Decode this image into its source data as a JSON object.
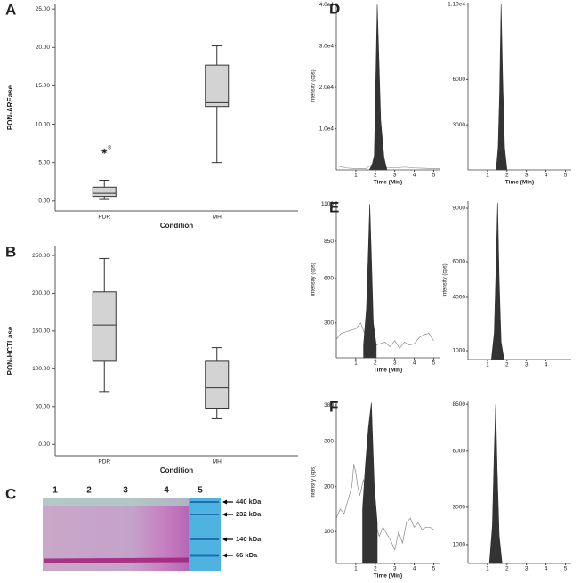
{
  "chart_data": [
    {
      "type": "box",
      "panel": "A",
      "ylabel": "PON-AREase",
      "xlabel": "Condition",
      "categories": [
        "PDR",
        "MH"
      ],
      "color": "#d3d3d3",
      "boxes": [
        {
          "min": 0.2,
          "q1": 0.6,
          "median": 1.0,
          "q3": 1.8,
          "max": 2.7
        },
        {
          "min": 5.0,
          "q1": 12.3,
          "median": 12.8,
          "q3": 17.7,
          "max": 20.2
        }
      ],
      "outliers": [
        {
          "category": "PDR",
          "value": 6.5,
          "label": "8"
        }
      ],
      "ylim": [
        -1.3,
        25.6
      ],
      "yticks": [
        {
          "value": 0,
          "label": "0.00"
        },
        {
          "value": 5,
          "label": "5.00"
        },
        {
          "value": 10,
          "label": "10.00"
        },
        {
          "value": 15,
          "label": "15.00"
        },
        {
          "value": 20,
          "label": "20.00"
        },
        {
          "value": 25,
          "label": "25.00"
        }
      ]
    },
    {
      "type": "box",
      "panel": "B",
      "ylabel": "PON-HCTLase",
      "xlabel": "Condition",
      "categories": [
        "PDR",
        "MH"
      ],
      "color": "#d3d3d3",
      "boxes": [
        {
          "min": 70,
          "q1": 110,
          "median": 158,
          "q3": 202,
          "max": 246
        },
        {
          "min": 34,
          "q1": 48,
          "median": 75,
          "q3": 110,
          "max": 128
        }
      ],
      "outliers": [],
      "ylim": [
        -15,
        263
      ],
      "yticks": [
        {
          "value": 0,
          "label": "0.00"
        },
        {
          "value": 50,
          "label": "50.00"
        },
        {
          "value": 100,
          "label": "100.00"
        },
        {
          "value": 150,
          "label": "150.00"
        },
        {
          "value": 200,
          "label": "200.00"
        },
        {
          "value": 250,
          "label": "250.00"
        }
      ]
    },
    {
      "type": "chromatogram",
      "panel": "D",
      "ylabel": "Intensity (cps)",
      "xlabel": "Time (Min)",
      "xlim": [
        0,
        5.3
      ],
      "xticks": [
        1,
        2,
        3,
        4,
        5
      ],
      "ylim": [
        0,
        40500
      ],
      "yticks": [
        {
          "value": 10000,
          "label": "1.0e4"
        },
        {
          "value": 20000,
          "label": "2.0e4"
        },
        {
          "value": 30000,
          "label": "3.0e4"
        },
        {
          "value": 40000,
          "label": "4.0e4"
        }
      ],
      "series": [
        {
          "color": "#999999",
          "x": [
            0.1,
            0.5,
            1,
            1.5,
            1.9,
            2.05,
            2.15,
            2.3,
            2.6,
            3,
            3.5,
            4,
            4.5,
            5,
            5.3
          ],
          "values": [
            900,
            500,
            300,
            300,
            1500,
            3000,
            2500,
            1200,
            600,
            500,
            700,
            500,
            400,
            300,
            300
          ]
        },
        {
          "color": "#333333",
          "fill": true,
          "x": [
            1.7,
            1.85,
            1.95,
            2.02,
            2.1,
            2.18,
            2.28,
            2.45,
            2.6
          ],
          "values": [
            0,
            1500,
            3500,
            20000,
            40000,
            28000,
            12000,
            3000,
            0
          ]
        }
      ]
    },
    {
      "type": "chromatogram",
      "xlabel": "Time (Min)",
      "xlim": [
        0,
        5.3
      ],
      "xticks": [
        1,
        2,
        3,
        4,
        5
      ],
      "ylim": [
        0,
        11100
      ],
      "yticks": [
        3000,
        6000,
        {
          "value": 11000,
          "label": "1.10e4"
        }
      ],
      "series": [
        {
          "color": "#333333",
          "fill": true,
          "x": [
            1.45,
            1.55,
            1.62,
            1.7,
            1.78,
            1.88,
            2.0
          ],
          "values": [
            0,
            1500,
            5000,
            11000,
            6000,
            1500,
            0
          ]
        }
      ]
    },
    {
      "type": "chromatogram",
      "panel": "E",
      "ylabel": "Intensity (cps)",
      "xlabel": "Time (Min)",
      "xlim": [
        0,
        5.3
      ],
      "xticks": [
        1,
        2,
        3,
        4,
        5
      ],
      "ylim": [
        65,
        1120
      ],
      "yticks": [
        300,
        600,
        850,
        1100
      ],
      "series": [
        {
          "color": "#888888",
          "x": [
            0,
            0.25,
            0.5,
            0.75,
            1,
            1.25,
            1.5,
            2.0,
            2.25,
            2.5,
            2.75,
            3,
            3.25,
            3.5,
            3.75,
            4,
            4.25,
            4.5,
            4.75,
            5
          ],
          "values": [
            190,
            230,
            240,
            250,
            260,
            300,
            210,
            150,
            160,
            170,
            140,
            180,
            130,
            170,
            150,
            160,
            200,
            220,
            230,
            180
          ]
        },
        {
          "color": "#333333",
          "fill": true,
          "x": [
            1.4,
            1.55,
            1.65,
            1.72,
            1.8,
            1.9,
            2.05
          ],
          "values": [
            150,
            400,
            800,
            1100,
            750,
            300,
            150
          ]
        }
      ]
    },
    {
      "type": "chromatogram",
      "ylabel": "Intensity (cps)",
      "xlim": [
        0,
        5.3
      ],
      "xticks": [
        1,
        2,
        3,
        4
      ],
      "ylim": [
        500,
        9400
      ],
      "yticks": [
        1000,
        4000,
        6000,
        9000
      ],
      "series": [
        {
          "color": "#333333",
          "fill": true,
          "x": [
            1.2,
            1.35,
            1.45,
            1.52,
            1.6,
            1.7,
            1.85
          ],
          "values": [
            500,
            2000,
            6000,
            9300,
            5000,
            1500,
            500
          ]
        }
      ]
    },
    {
      "type": "chromatogram",
      "panel": "F",
      "ylabel": "Intensity (cps)",
      "xlabel": "Time (Min)",
      "xlim": [
        0,
        5.3
      ],
      "xticks": [
        1,
        2,
        3,
        4,
        5
      ],
      "ylim": [
        30,
        390
      ],
      "yticks": [
        100,
        200,
        300,
        380
      ],
      "series": [
        {
          "color": "#888888",
          "x": [
            0,
            0.2,
            0.4,
            0.6,
            0.8,
            0.9,
            1.0,
            1.1,
            1.2,
            1.4,
            1.6,
            2.0,
            2.2,
            2.4,
            2.6,
            2.8,
            3.0,
            3.2,
            3.4,
            3.6,
            3.8,
            4.0,
            4.2,
            4.4,
            4.6,
            4.8,
            5.0
          ],
          "values": [
            130,
            150,
            140,
            170,
            200,
            250,
            230,
            200,
            180,
            215,
            190,
            120,
            90,
            110,
            95,
            80,
            60,
            100,
            75,
            120,
            130,
            110,
            120,
            105,
            110,
            110,
            105
          ]
        },
        {
          "color": "#333333",
          "fill": true,
          "x": [
            1.35,
            1.5,
            1.65,
            1.8,
            1.95,
            2.1
          ],
          "values": [
            150,
            250,
            330,
            385,
            200,
            120
          ]
        }
      ]
    },
    {
      "type": "chromatogram",
      "xlim": [
        0,
        5.3
      ],
      "xticks": [
        1,
        2,
        3,
        4,
        5
      ],
      "ylim": [
        0,
        8700
      ],
      "yticks": [
        1000,
        3000,
        6000,
        8500
      ],
      "series": [
        {
          "color": "#333333",
          "fill": true,
          "x": [
            1.1,
            1.25,
            1.35,
            1.42,
            1.5,
            1.6,
            1.75
          ],
          "values": [
            0,
            2000,
            6000,
            8500,
            5000,
            1500,
            0
          ]
        }
      ]
    }
  ],
  "gel": {
    "panel": "C",
    "lanes": [
      "1",
      "2",
      "3",
      "4",
      "5"
    ],
    "markers": [
      "440 kDa",
      "232 kDa",
      "140 kDa",
      "66 kDa"
    ]
  }
}
